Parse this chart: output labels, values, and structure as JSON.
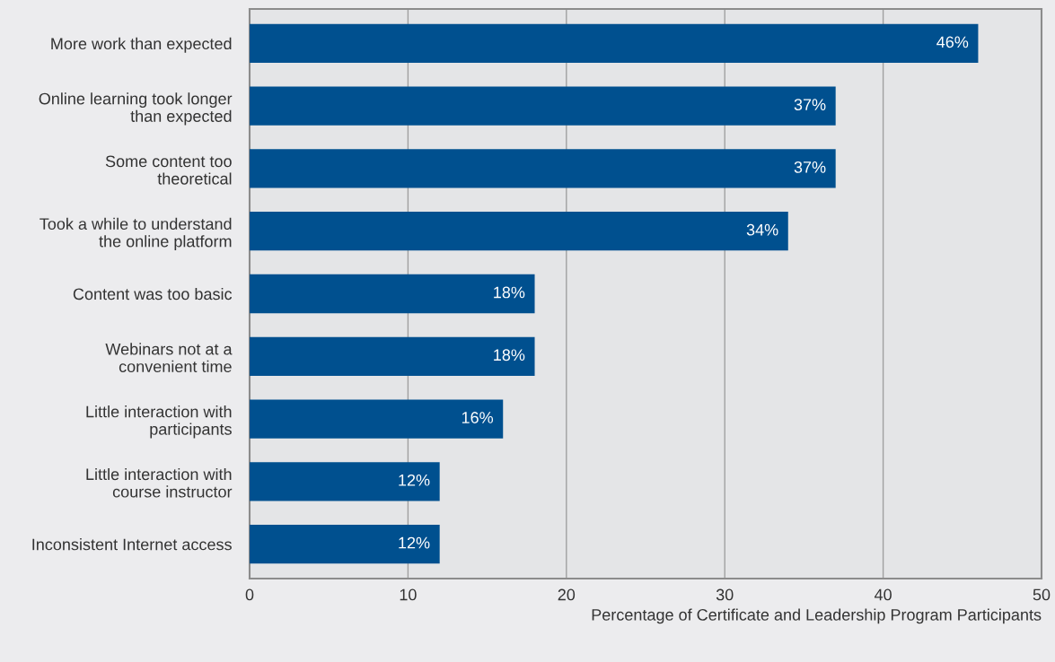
{
  "chart_data": {
    "type": "bar",
    "orientation": "horizontal",
    "xlabel": "Percentage of Certificate and Leadership Program Participants",
    "categories": [
      "More work than expected",
      "Online learning took longer\nthan expected",
      "Some content too\ntheoretical",
      "Took a while to understand\nthe online platform",
      "Content was too basic",
      "Webinars not at a\nconvenient time",
      "Little interaction with\nparticipants",
      "Little interaction with\ncourse instructor",
      "Inconsistent Internet access"
    ],
    "values": [
      46,
      37,
      37,
      34,
      18,
      18,
      16,
      12,
      12
    ],
    "value_labels": [
      "46%",
      "37%",
      "37%",
      "34%",
      "18%",
      "18%",
      "16%",
      "12%",
      "12%"
    ],
    "color": "#00508f",
    "xlim": [
      0,
      50
    ],
    "xticks": [
      0,
      10,
      20,
      30,
      40,
      50
    ],
    "grid": "x"
  }
}
